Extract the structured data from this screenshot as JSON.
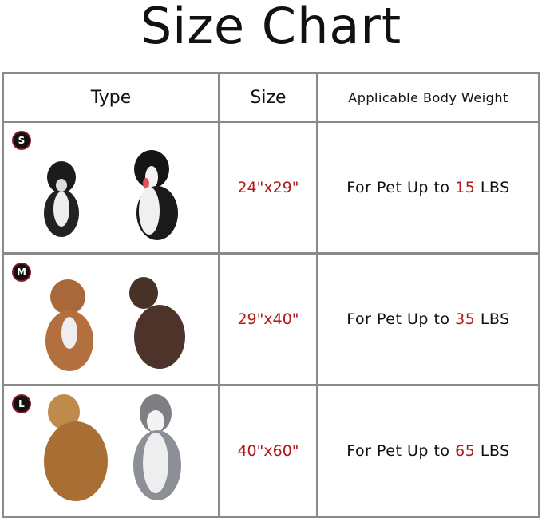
{
  "title": "Size Chart",
  "headers": {
    "type": "Type",
    "size": "Size",
    "weight": "Applicable Body Weight"
  },
  "accent_color": "#b01818",
  "rows": [
    {
      "badge": "S",
      "size": "24\"x29\"",
      "prefix": "For Pet Up to",
      "weight": "15",
      "unit": "LBS",
      "dogs": [
        "small black-white puppy",
        "black-white border collie puppy"
      ]
    },
    {
      "badge": "M",
      "size": "29\"x40\"",
      "prefix": "For Pet Up to",
      "weight": "35",
      "unit": "LBS",
      "dogs": [
        "brown poodle mix",
        "chocolate labrador"
      ]
    },
    {
      "badge": "L",
      "size": "40\"x60\"",
      "prefix": "For Pet Up to",
      "weight": "65",
      "unit": "LBS",
      "dogs": [
        "golden retriever",
        "siberian husky"
      ]
    }
  ]
}
